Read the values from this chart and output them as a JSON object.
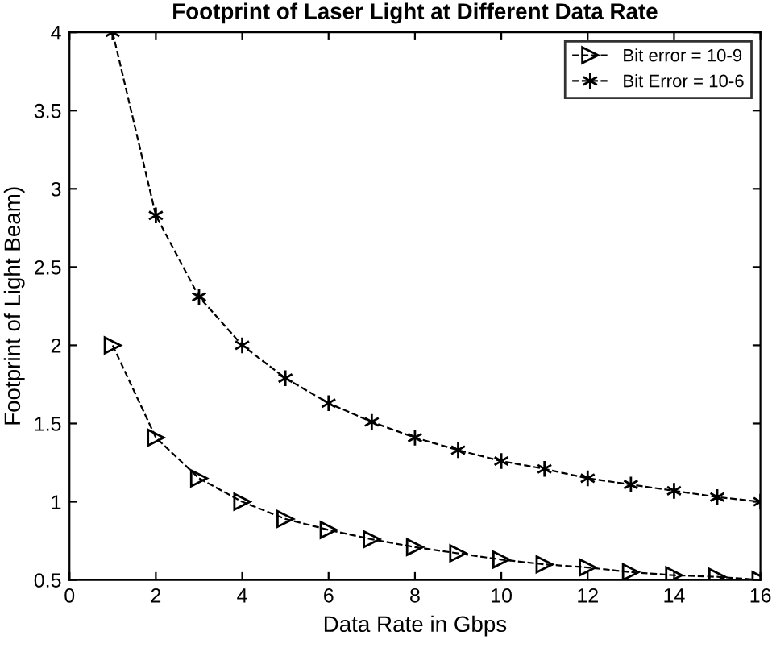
{
  "chart_data": {
    "type": "line",
    "title": "Footprint of Laser Light at Different Data Rate",
    "xlabel": "Data Rate in Gbps",
    "ylabel": "Footprint of Light Beam)",
    "x": [
      1,
      2,
      3,
      4,
      5,
      6,
      7,
      8,
      9,
      10,
      11,
      12,
      13,
      14,
      15,
      16
    ],
    "series": [
      {
        "name": "Bit error = 10-9",
        "color": "#000000",
        "marker": "triangle",
        "line_style": "dashed",
        "values": [
          2,
          1.41,
          1.15,
          1,
          0.89,
          0.82,
          0.76,
          0.71,
          0.67,
          0.63,
          0.6,
          0.58,
          0.55,
          0.53,
          0.52,
          0.5
        ]
      },
      {
        "name": "Bit Error = 10-6",
        "color": "#000000",
        "marker": "cross",
        "line_style": "dashed",
        "values": [
          4,
          2.83,
          2.31,
          2,
          1.79,
          1.63,
          1.51,
          1.41,
          1.33,
          1.26,
          1.21,
          1.15,
          1.11,
          1.07,
          1.03,
          1
        ]
      }
    ],
    "xlim": [
      0,
      16
    ],
    "xticks": [
      0,
      2,
      4,
      6,
      8,
      10,
      12,
      14,
      16
    ],
    "ylim": [
      0.5,
      4
    ],
    "yticks": [
      0.5,
      1,
      1.5,
      2,
      2.5,
      3,
      3.5,
      4
    ],
    "grid": false,
    "legend": "top right"
  }
}
